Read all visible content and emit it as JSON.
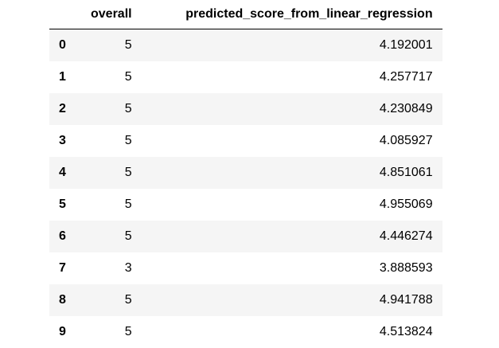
{
  "table": {
    "columns": [
      "overall",
      "predicted_score_from_linear_regression"
    ],
    "rows": [
      {
        "index": "0",
        "overall": "5",
        "predicted": "4.192001"
      },
      {
        "index": "1",
        "overall": "5",
        "predicted": "4.257717"
      },
      {
        "index": "2",
        "overall": "5",
        "predicted": "4.230849"
      },
      {
        "index": "3",
        "overall": "5",
        "predicted": "4.085927"
      },
      {
        "index": "4",
        "overall": "5",
        "predicted": "4.851061"
      },
      {
        "index": "5",
        "overall": "5",
        "predicted": "4.955069"
      },
      {
        "index": "6",
        "overall": "5",
        "predicted": "4.446274"
      },
      {
        "index": "7",
        "overall": "3",
        "predicted": "3.888593"
      },
      {
        "index": "8",
        "overall": "5",
        "predicted": "4.941788"
      },
      {
        "index": "9",
        "overall": "5",
        "predicted": "4.513824"
      }
    ]
  },
  "colors": {
    "stripe": "#f5f5f5",
    "background": "#ffffff",
    "header_rule": "#000000"
  }
}
